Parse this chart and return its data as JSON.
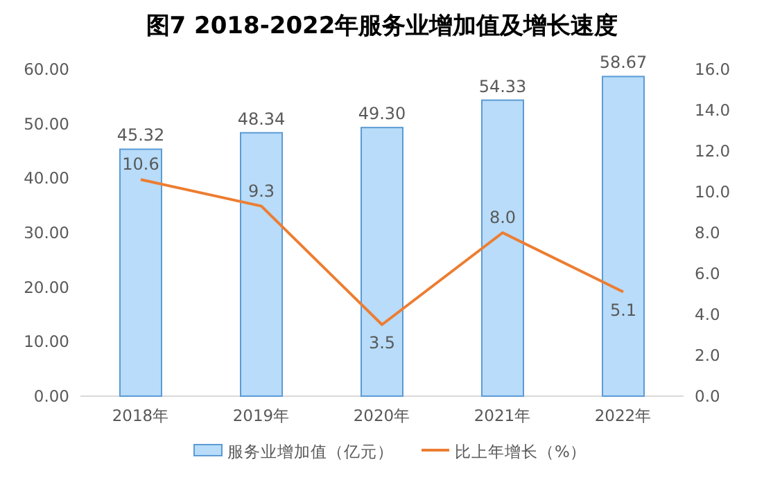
{
  "chart_data": {
    "type": "bar",
    "title": "图7  2018-2022年服务业增加值及增长速度",
    "categories": [
      "2018年",
      "2019年",
      "2020年",
      "2021年",
      "2022年"
    ],
    "series": [
      {
        "name": "服务业增加值（亿元）",
        "color": "#b8dcf9",
        "values": [
          45.32,
          48.34,
          49.3,
          54.33,
          58.67
        ],
        "value_labels": [
          "45.32",
          "48.34",
          "49.30",
          "54.33",
          "58.67"
        ]
      },
      {
        "name": "比上年增长（%）",
        "type": "line",
        "axis": "y2",
        "color": "#ed7d31",
        "values": [
          10.6,
          9.3,
          3.5,
          8.0,
          5.1
        ],
        "value_labels": [
          "10.6",
          "9.3",
          "3.5",
          "8.0",
          "5.1"
        ]
      }
    ],
    "ylim": [
      0,
      60
    ],
    "yticks": [
      {
        "value": 0,
        "label": "0.00"
      },
      {
        "value": 10,
        "label": "10.00"
      },
      {
        "value": 20,
        "label": "20.00"
      },
      {
        "value": 30,
        "label": "30.00"
      },
      {
        "value": 40,
        "label": "40.00"
      },
      {
        "value": 50,
        "label": "50.00"
      },
      {
        "value": 60,
        "label": "60.00"
      }
    ],
    "y2lim": [
      0,
      16
    ],
    "y2ticks": [
      {
        "value": 0,
        "label": "0.0"
      },
      {
        "value": 2,
        "label": "2.0"
      },
      {
        "value": 4,
        "label": "4.0"
      },
      {
        "value": 6,
        "label": "6.0"
      },
      {
        "value": 8,
        "label": "8.0"
      },
      {
        "value": 10,
        "label": "10.0"
      },
      {
        "value": 12,
        "label": "12.0"
      },
      {
        "value": 14,
        "label": "14.0"
      },
      {
        "value": 16,
        "label": "16.0"
      }
    ],
    "grid": false,
    "legend": "bottom",
    "marker": "none",
    "line_style": "solid"
  }
}
